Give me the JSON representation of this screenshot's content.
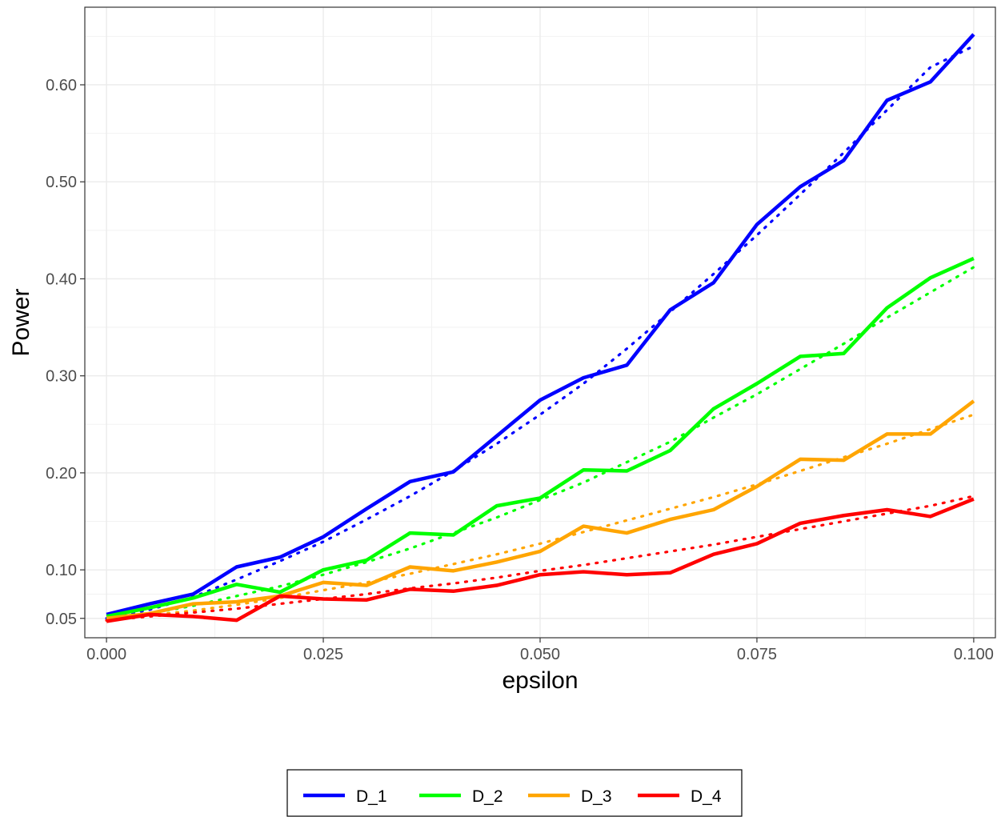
{
  "chart_data": {
    "type": "line",
    "xlabel": "epsilon",
    "ylabel": "Power",
    "xlim": [
      -0.0025,
      0.1025
    ],
    "ylim": [
      0.03,
      0.68
    ],
    "x_tick_labels": [
      "0.000",
      "0.025",
      "0.050",
      "0.075",
      "0.100"
    ],
    "x_ticks": [
      0,
      0.025,
      0.05,
      0.075,
      0.1
    ],
    "y_tick_labels": [
      "0.05",
      "0.10",
      "0.20",
      "0.30",
      "0.40",
      "0.50",
      "0.60"
    ],
    "y_ticks": [
      0.05,
      0.1,
      0.2,
      0.3,
      0.4,
      0.5,
      0.6
    ],
    "grid": true,
    "legend_position": "bottom",
    "x": [
      0,
      0.005,
      0.01,
      0.015,
      0.02,
      0.025,
      0.03,
      0.035,
      0.04,
      0.045,
      0.05,
      0.055,
      0.06,
      0.065,
      0.07,
      0.075,
      0.08,
      0.085,
      0.09,
      0.095,
      0.1
    ],
    "series": [
      {
        "name": "D_1",
        "color": "#0000ff",
        "values": [
          0.054,
          0.065,
          0.075,
          0.103,
          0.113,
          0.134,
          0.163,
          0.191,
          0.201,
          0.238,
          0.275,
          0.298,
          0.311,
          0.368,
          0.396,
          0.456,
          0.495,
          0.522,
          0.584,
          0.603,
          0.652
        ],
        "trend": [
          0.05,
          0.059,
          0.072,
          0.09,
          0.109,
          0.129,
          0.152,
          0.176,
          0.202,
          0.23,
          0.26,
          0.292,
          0.328,
          0.366,
          0.405,
          0.445,
          0.487,
          0.53,
          0.574,
          0.618,
          0.64
        ]
      },
      {
        "name": "D_2",
        "color": "#00ff00",
        "values": [
          0.052,
          0.061,
          0.071,
          0.085,
          0.077,
          0.1,
          0.11,
          0.138,
          0.136,
          0.166,
          0.174,
          0.203,
          0.202,
          0.223,
          0.266,
          0.292,
          0.32,
          0.323,
          0.37,
          0.401,
          0.421
        ],
        "trend": [
          0.048,
          0.055,
          0.063,
          0.073,
          0.083,
          0.095,
          0.108,
          0.122,
          0.138,
          0.154,
          0.172,
          0.19,
          0.211,
          0.232,
          0.257,
          0.281,
          0.307,
          0.333,
          0.36,
          0.386,
          0.412
        ]
      },
      {
        "name": "D_3",
        "color": "#ffa500",
        "values": [
          0.05,
          0.055,
          0.065,
          0.067,
          0.073,
          0.087,
          0.084,
          0.103,
          0.099,
          0.108,
          0.119,
          0.145,
          0.138,
          0.152,
          0.162,
          0.186,
          0.214,
          0.213,
          0.24,
          0.24,
          0.274
        ],
        "trend": [
          0.048,
          0.053,
          0.058,
          0.064,
          0.071,
          0.079,
          0.087,
          0.096,
          0.106,
          0.116,
          0.127,
          0.139,
          0.151,
          0.163,
          0.175,
          0.188,
          0.202,
          0.216,
          0.23,
          0.245,
          0.26
        ]
      },
      {
        "name": "D_4",
        "color": "#ff0000",
        "values": [
          0.047,
          0.054,
          0.052,
          0.048,
          0.073,
          0.07,
          0.069,
          0.08,
          0.078,
          0.084,
          0.095,
          0.098,
          0.095,
          0.097,
          0.116,
          0.127,
          0.148,
          0.156,
          0.162,
          0.155,
          0.173
        ],
        "trend": [
          0.048,
          0.052,
          0.056,
          0.06,
          0.065,
          0.07,
          0.075,
          0.081,
          0.086,
          0.092,
          0.099,
          0.105,
          0.112,
          0.119,
          0.126,
          0.134,
          0.142,
          0.15,
          0.158,
          0.166,
          0.176
        ]
      }
    ]
  }
}
